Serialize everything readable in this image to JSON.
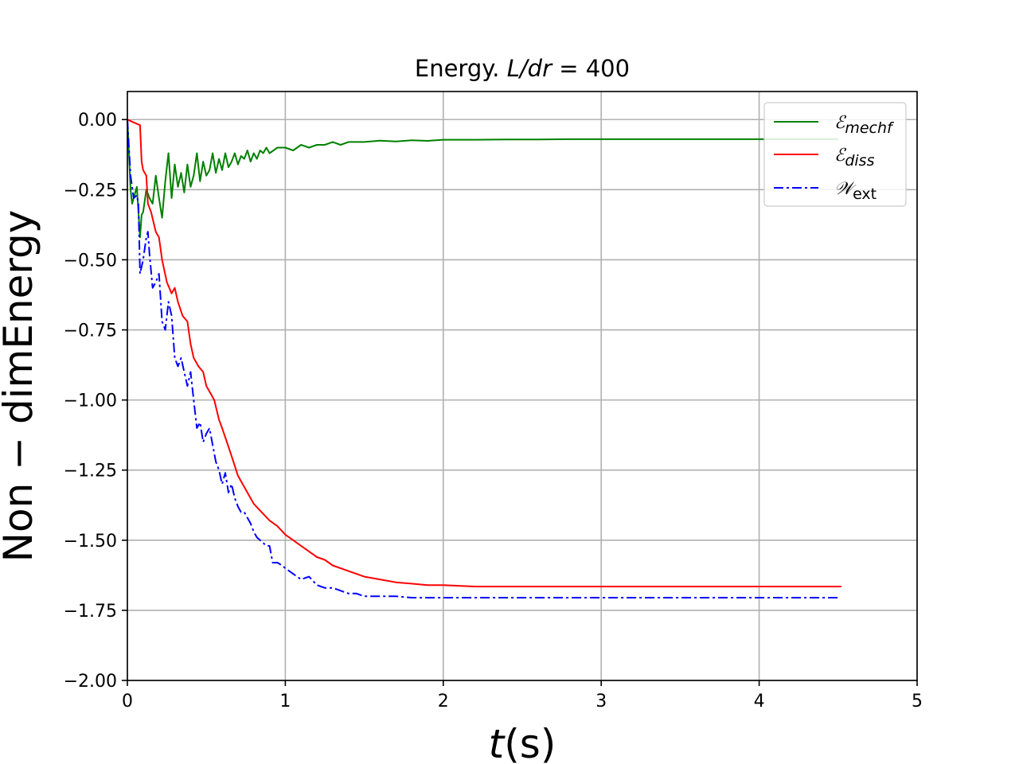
{
  "chart_data": {
    "type": "line",
    "title": "Energy. L/dr = 400",
    "title_plain": "Energy. ",
    "title_math": "L/dr",
    "title_tail": " = 400",
    "xlabel": "t(s)",
    "xlabel_math": "t",
    "xlabel_tail": "(s)",
    "ylabel": "Non − dimEnergy",
    "xlim": [
      0,
      5
    ],
    "ylim": [
      -2.0,
      0.1
    ],
    "xticks": [
      0,
      1,
      2,
      3,
      4,
      5
    ],
    "xtick_labels": [
      "0",
      "1",
      "2",
      "3",
      "4",
      "5"
    ],
    "yticks": [
      0.0,
      -0.25,
      -0.5,
      -0.75,
      -1.0,
      -1.25,
      -1.5,
      -1.75,
      -2.0
    ],
    "ytick_labels": [
      "0.00",
      "−0.25",
      "−0.50",
      "−0.75",
      "−1.00",
      "−1.25",
      "−1.50",
      "−1.75",
      "−2.00"
    ],
    "grid": true,
    "legend_position": "top-right",
    "series": [
      {
        "name": "Emechf",
        "legend_main": "ℰ",
        "legend_sub": "mechf",
        "color": "#008000",
        "style": "solid",
        "x": [
          0,
          0.01,
          0.02,
          0.03,
          0.04,
          0.06,
          0.08,
          0.09,
          0.1,
          0.12,
          0.14,
          0.16,
          0.18,
          0.2,
          0.22,
          0.24,
          0.26,
          0.28,
          0.3,
          0.32,
          0.34,
          0.36,
          0.38,
          0.4,
          0.42,
          0.44,
          0.46,
          0.48,
          0.5,
          0.52,
          0.54,
          0.56,
          0.58,
          0.6,
          0.62,
          0.64,
          0.66,
          0.68,
          0.7,
          0.72,
          0.74,
          0.76,
          0.78,
          0.8,
          0.82,
          0.84,
          0.86,
          0.88,
          0.9,
          0.95,
          1.0,
          1.05,
          1.1,
          1.15,
          1.2,
          1.25,
          1.3,
          1.35,
          1.4,
          1.45,
          1.5,
          1.6,
          1.7,
          1.8,
          1.9,
          2.0,
          2.2,
          2.4,
          2.6,
          2.8,
          3.0,
          3.5,
          4.0,
          4.5
        ],
        "y": [
          0.0,
          -0.12,
          -0.25,
          -0.3,
          -0.28,
          -0.24,
          -0.42,
          -0.34,
          -0.33,
          -0.25,
          -0.28,
          -0.3,
          -0.2,
          -0.28,
          -0.35,
          -0.22,
          -0.12,
          -0.28,
          -0.16,
          -0.24,
          -0.19,
          -0.26,
          -0.16,
          -0.24,
          -0.2,
          -0.12,
          -0.22,
          -0.15,
          -0.2,
          -0.18,
          -0.12,
          -0.19,
          -0.14,
          -0.18,
          -0.12,
          -0.17,
          -0.15,
          -0.12,
          -0.16,
          -0.13,
          -0.14,
          -0.11,
          -0.15,
          -0.12,
          -0.14,
          -0.11,
          -0.12,
          -0.1,
          -0.12,
          -0.1,
          -0.1,
          -0.11,
          -0.09,
          -0.1,
          -0.09,
          -0.09,
          -0.08,
          -0.09,
          -0.08,
          -0.08,
          -0.08,
          -0.075,
          -0.078,
          -0.074,
          -0.076,
          -0.072,
          -0.072,
          -0.071,
          -0.071,
          -0.07,
          -0.07,
          -0.07,
          -0.07,
          -0.07
        ]
      },
      {
        "name": "Ediss",
        "legend_main": "ℰ",
        "legend_sub": "diss",
        "color": "#ff0000",
        "style": "solid",
        "x": [
          0,
          0.04,
          0.08,
          0.09,
          0.1,
          0.12,
          0.13,
          0.15,
          0.18,
          0.2,
          0.22,
          0.25,
          0.28,
          0.3,
          0.32,
          0.35,
          0.38,
          0.4,
          0.42,
          0.45,
          0.48,
          0.5,
          0.52,
          0.55,
          0.58,
          0.6,
          0.63,
          0.66,
          0.7,
          0.75,
          0.8,
          0.85,
          0.9,
          0.95,
          1.0,
          1.05,
          1.1,
          1.15,
          1.2,
          1.25,
          1.3,
          1.4,
          1.5,
          1.6,
          1.7,
          1.8,
          1.9,
          2.0,
          2.2,
          2.5,
          3.0,
          3.5,
          4.0,
          4.52
        ],
        "y": [
          0.0,
          -0.01,
          -0.02,
          -0.15,
          -0.18,
          -0.2,
          -0.3,
          -0.33,
          -0.4,
          -0.42,
          -0.5,
          -0.58,
          -0.62,
          -0.6,
          -0.65,
          -0.7,
          -0.72,
          -0.8,
          -0.85,
          -0.88,
          -0.9,
          -0.95,
          -0.97,
          -1.0,
          -1.07,
          -1.1,
          -1.15,
          -1.2,
          -1.27,
          -1.32,
          -1.37,
          -1.4,
          -1.43,
          -1.45,
          -1.48,
          -1.5,
          -1.52,
          -1.54,
          -1.56,
          -1.57,
          -1.59,
          -1.61,
          -1.63,
          -1.64,
          -1.65,
          -1.655,
          -1.66,
          -1.66,
          -1.665,
          -1.665,
          -1.665,
          -1.665,
          -1.665,
          -1.665
        ]
      },
      {
        "name": "Wext",
        "legend_main": "𝒲",
        "legend_sub": "ext",
        "color": "#0000ff",
        "style": "dashdot",
        "x": [
          0,
          0.02,
          0.04,
          0.06,
          0.07,
          0.08,
          0.1,
          0.12,
          0.13,
          0.14,
          0.16,
          0.18,
          0.2,
          0.22,
          0.24,
          0.26,
          0.28,
          0.3,
          0.32,
          0.34,
          0.36,
          0.38,
          0.4,
          0.42,
          0.44,
          0.46,
          0.48,
          0.5,
          0.52,
          0.54,
          0.56,
          0.58,
          0.6,
          0.62,
          0.64,
          0.66,
          0.68,
          0.7,
          0.72,
          0.74,
          0.76,
          0.78,
          0.8,
          0.82,
          0.84,
          0.86,
          0.88,
          0.9,
          0.92,
          0.95,
          0.98,
          1.0,
          1.05,
          1.1,
          1.15,
          1.2,
          1.25,
          1.3,
          1.35,
          1.4,
          1.45,
          1.5,
          1.6,
          1.7,
          1.8,
          1.9,
          2.0,
          2.2,
          2.5,
          3.0,
          3.5,
          4.0,
          4.5
        ],
        "y": [
          0.0,
          -0.2,
          -0.28,
          -0.27,
          -0.3,
          -0.55,
          -0.5,
          -0.42,
          -0.4,
          -0.48,
          -0.6,
          -0.58,
          -0.55,
          -0.72,
          -0.75,
          -0.65,
          -0.7,
          -0.85,
          -0.88,
          -0.85,
          -0.9,
          -0.95,
          -0.9,
          -1.0,
          -1.1,
          -1.08,
          -1.15,
          -1.12,
          -1.1,
          -1.16,
          -1.22,
          -1.25,
          -1.3,
          -1.26,
          -1.33,
          -1.3,
          -1.35,
          -1.38,
          -1.4,
          -1.4,
          -1.42,
          -1.44,
          -1.47,
          -1.49,
          -1.5,
          -1.51,
          -1.52,
          -1.52,
          -1.58,
          -1.58,
          -1.59,
          -1.6,
          -1.62,
          -1.64,
          -1.63,
          -1.66,
          -1.67,
          -1.67,
          -1.68,
          -1.69,
          -1.69,
          -1.7,
          -1.7,
          -1.7,
          -1.705,
          -1.705,
          -1.705,
          -1.705,
          -1.705,
          -1.705,
          -1.705,
          -1.705,
          -1.705
        ]
      }
    ]
  }
}
